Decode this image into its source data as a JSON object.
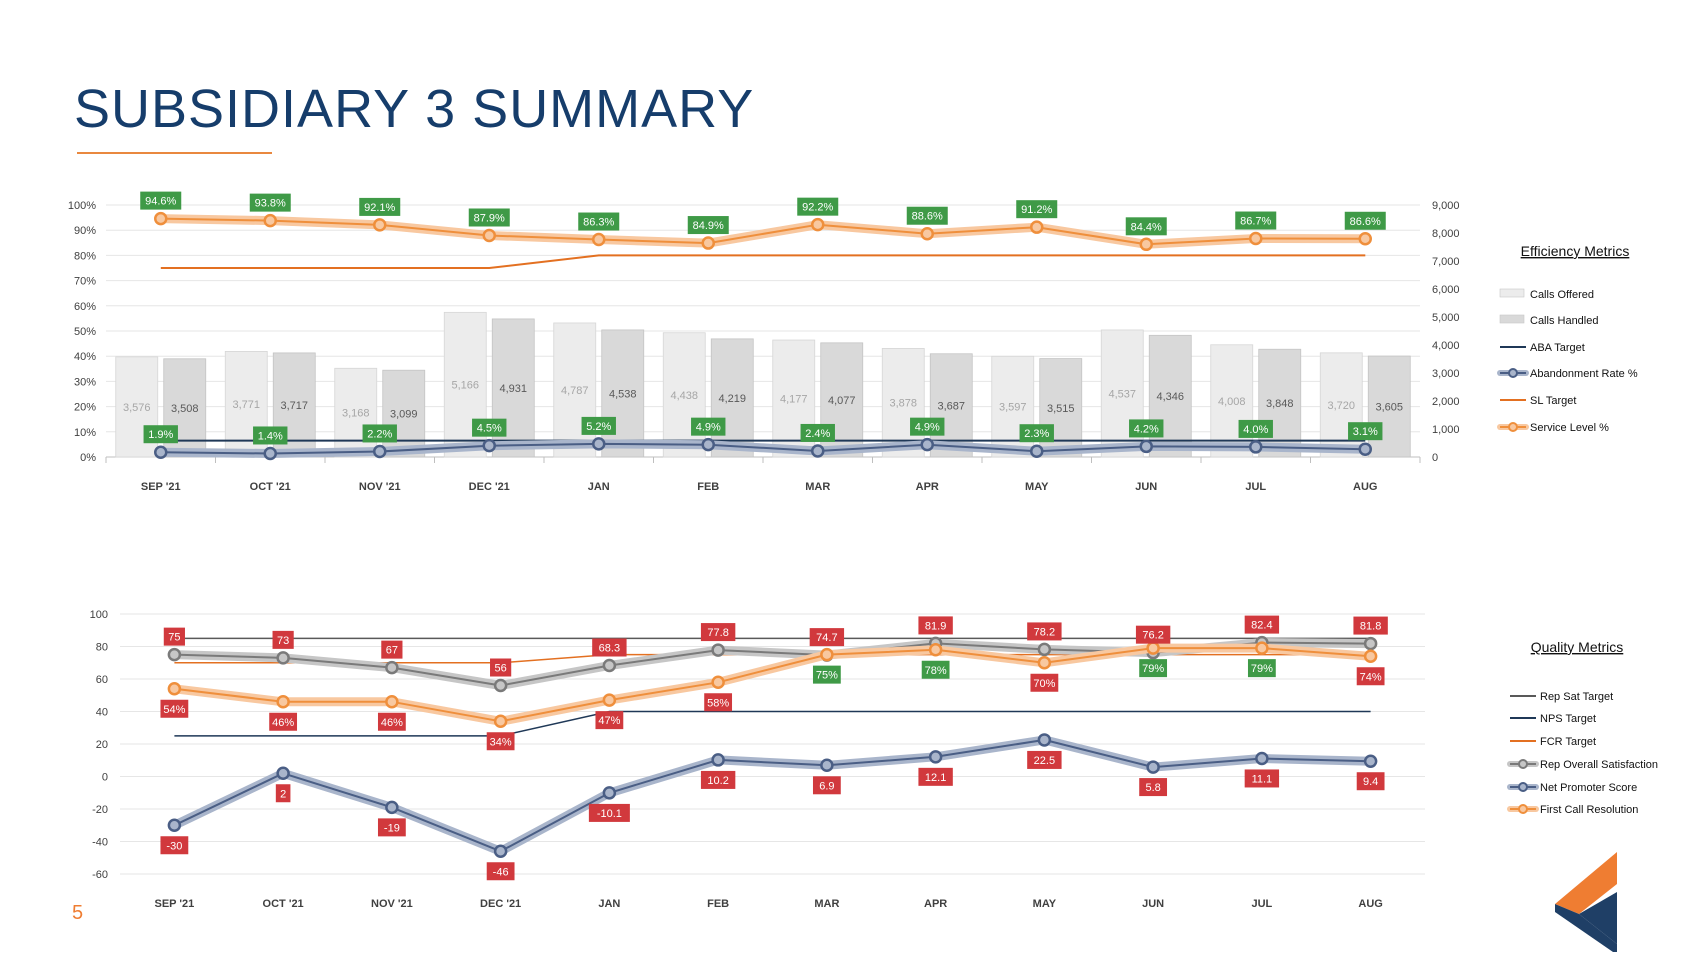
{
  "page": {
    "title": "SUBSIDIARY 3 SUMMARY",
    "page_number": "5",
    "logo_icon": "company-logo-icon"
  },
  "colors": {
    "calls_offered": "#ececec",
    "calls_handled": "#d9d9d9",
    "aba_target": "#1f3857",
    "abandonment": "#4a5e85",
    "abandonment_halo": "#a9b5cb",
    "sl_target": "#e37021",
    "service_level": "#ef8f3c",
    "service_level_halo": "#f8c8a0",
    "label_green": "#3f9a47",
    "label_red": "#d1393d",
    "rep_target": "#595959",
    "nps_target": "#1f3857",
    "fcr_target": "#e37021",
    "rep_sat": "#7a7a7a",
    "rep_sat_halo": "#c6c6c6",
    "nps": "#4a5e85",
    "nps_halo": "#a9b5cb",
    "fcr": "#ef8f3c",
    "fcr_halo": "#f8c8a0",
    "logo_orange": "#ef7d32",
    "logo_navy": "#1f3f66"
  },
  "chart_data": [
    {
      "type": "bar",
      "legend_title": "Efficiency Metrics",
      "legend_position": "right",
      "categories": [
        "SEP '21",
        "OCT '21",
        "NOV '21",
        "DEC '21",
        "JAN",
        "FEB",
        "MAR",
        "APR",
        "MAY",
        "JUN",
        "JUL",
        "AUG"
      ],
      "y_left": {
        "min": 0,
        "max": 100,
        "ticks": [
          "0%",
          "10%",
          "20%",
          "30%",
          "40%",
          "50%",
          "60%",
          "70%",
          "80%",
          "90%",
          "100%"
        ]
      },
      "y_right": {
        "min": 0,
        "max": 9000,
        "ticks": [
          "0",
          "1,000",
          "2,000",
          "3,000",
          "4,000",
          "5,000",
          "6,000",
          "7,000",
          "8,000",
          "9,000"
        ]
      },
      "grid": true,
      "series": [
        {
          "name": "Calls Offered",
          "type": "bar",
          "axis": "right",
          "values": [
            3576,
            3771,
            3168,
            5166,
            4787,
            4438,
            4177,
            3878,
            3597,
            4537,
            4008,
            3720
          ],
          "labels": [
            "3,576",
            "3,771",
            "3,168",
            "5,166",
            "4,787",
            "4,438",
            "4,177",
            "3,878",
            "3,597",
            "4,537",
            "4,008",
            "3,720"
          ]
        },
        {
          "name": "Calls Handled",
          "type": "bar",
          "axis": "right",
          "values": [
            3508,
            3717,
            3099,
            4931,
            4538,
            4219,
            4077,
            3687,
            3515,
            4346,
            3848,
            3605
          ],
          "labels": [
            "3,508",
            "3,717",
            "3,099",
            "4,931",
            "4,538",
            "4,219",
            "4,077",
            "3,687",
            "3,515",
            "4,346",
            "3,848",
            "3,605"
          ]
        },
        {
          "name": "ABA Target",
          "type": "line",
          "axis": "left",
          "values": [
            6.5,
            6.5,
            6.5,
            6.5,
            6.5,
            6.5,
            6.5,
            6.5,
            6.5,
            6.5,
            6.5,
            6.5
          ]
        },
        {
          "name": "Abandonment Rate %",
          "type": "line",
          "axis": "left",
          "values": [
            1.9,
            1.4,
            2.2,
            4.5,
            5.2,
            4.9,
            2.4,
            4.9,
            2.3,
            4.2,
            4.0,
            3.1
          ],
          "labels": [
            "1.9%",
            "1.4%",
            "2.2%",
            "4.5%",
            "5.2%",
            "4.9%",
            "2.4%",
            "4.9%",
            "2.3%",
            "4.2%",
            "4.0%",
            "3.1%"
          ]
        },
        {
          "name": "SL Target",
          "type": "line",
          "axis": "left",
          "values": [
            75,
            75,
            75,
            75,
            80,
            80,
            80,
            80,
            80,
            80,
            80,
            80
          ]
        },
        {
          "name": "Service Level %",
          "type": "line",
          "axis": "left",
          "values": [
            94.6,
            93.8,
            92.1,
            87.9,
            86.3,
            84.9,
            92.2,
            88.6,
            91.2,
            84.4,
            86.7,
            86.6
          ],
          "labels": [
            "94.6%",
            "93.8%",
            "92.1%",
            "87.9%",
            "86.3%",
            "84.9%",
            "92.2%",
            "88.6%",
            "91.2%",
            "84.4%",
            "86.7%",
            "86.6%"
          ]
        }
      ]
    },
    {
      "type": "line",
      "legend_title": "Quality Metrics",
      "legend_position": "right",
      "categories": [
        "SEP '21",
        "OCT '21",
        "NOV '21",
        "DEC '21",
        "JAN",
        "FEB",
        "MAR",
        "APR",
        "MAY",
        "JUN",
        "JUL",
        "AUG"
      ],
      "y": {
        "min": -60,
        "max": 100,
        "ticks": [
          "-60",
          "-40",
          "-20",
          "0",
          "20",
          "40",
          "60",
          "80",
          "100"
        ]
      },
      "grid": true,
      "series": [
        {
          "name": "Rep Sat Target",
          "values": [
            85,
            85,
            85,
            85,
            85,
            85,
            85,
            85,
            85,
            85,
            85,
            85
          ]
        },
        {
          "name": "NPS Target",
          "values": [
            25,
            25,
            25,
            25,
            40,
            40,
            40,
            40,
            40,
            40,
            40,
            40
          ]
        },
        {
          "name": "FCR Target",
          "values": [
            70,
            70,
            70,
            70,
            75,
            75,
            75,
            75,
            75,
            75,
            75,
            75
          ]
        },
        {
          "name": "Rep Overall Satisfaction",
          "values": [
            75,
            73,
            67,
            56,
            68.3,
            77.8,
            74.7,
            81.9,
            78.2,
            76.2,
            82.4,
            81.8
          ],
          "labels": [
            "75",
            "73",
            "67",
            "56",
            "68.3",
            "77.8",
            "74.7",
            "81.9",
            "78.2",
            "76.2",
            "82.4",
            "81.8"
          ],
          "label_colors": [
            "red",
            "red",
            "red",
            "red",
            "red",
            "red",
            "red",
            "red",
            "red",
            "red",
            "red",
            "red"
          ]
        },
        {
          "name": "Net Promoter Score",
          "values": [
            -30,
            2,
            -19,
            -46,
            -10.1,
            10.2,
            6.9,
            12.1,
            22.5,
            5.8,
            11.1,
            9.4
          ],
          "labels": [
            "-30",
            "2",
            "-19",
            "-46",
            "-10.1",
            "10.2",
            "6.9",
            "12.1",
            "22.5",
            "5.8",
            "11.1",
            "9.4"
          ],
          "label_colors": [
            "red",
            "red",
            "red",
            "red",
            "red",
            "red",
            "red",
            "red",
            "red",
            "red",
            "red",
            "red"
          ]
        },
        {
          "name": "First Call Resolution",
          "values": [
            54,
            46,
            46,
            34,
            47,
            58,
            75,
            78,
            70,
            79,
            79,
            74
          ],
          "labels": [
            "54%",
            "46%",
            "46%",
            "34%",
            "47%",
            "58%",
            "75%",
            "78%",
            "70%",
            "79%",
            "79%",
            "74%"
          ],
          "label_colors": [
            "red",
            "red",
            "red",
            "red",
            "red",
            "red",
            "green",
            "green",
            "red",
            "green",
            "green",
            "red"
          ]
        }
      ]
    }
  ]
}
